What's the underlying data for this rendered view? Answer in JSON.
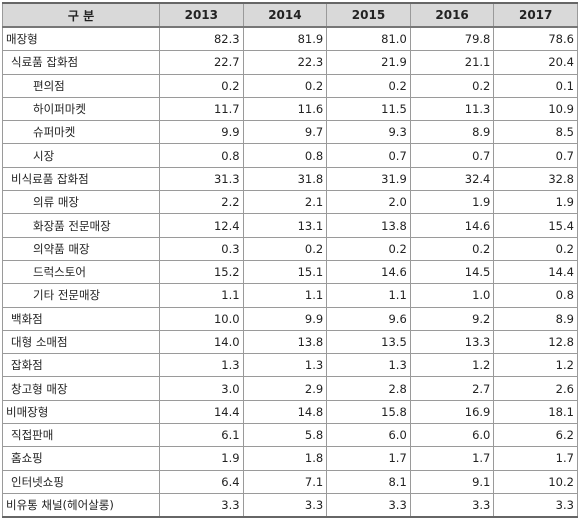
{
  "header": {
    "category": "구 분",
    "years": [
      "2013",
      "2014",
      "2015",
      "2016",
      "2017"
    ]
  },
  "rows": [
    {
      "label": "매장형",
      "level": 0,
      "values": [
        "82.3",
        "81.9",
        "81.0",
        "79.8",
        "78.6"
      ]
    },
    {
      "label": "식료품 잡화점",
      "level": 1,
      "values": [
        "22.7",
        "22.3",
        "21.9",
        "21.1",
        "20.4"
      ]
    },
    {
      "label": "편의점",
      "level": 2,
      "values": [
        "0.2",
        "0.2",
        "0.2",
        "0.2",
        "0.1"
      ]
    },
    {
      "label": "하이퍼마켓",
      "level": 2,
      "values": [
        "11.7",
        "11.6",
        "11.5",
        "11.3",
        "10.9"
      ]
    },
    {
      "label": "슈퍼마켓",
      "level": 2,
      "values": [
        "9.9",
        "9.7",
        "9.3",
        "8.9",
        "8.5"
      ]
    },
    {
      "label": "시장",
      "level": 2,
      "values": [
        "0.8",
        "0.8",
        "0.7",
        "0.7",
        "0.7"
      ]
    },
    {
      "label": "비식료품 잡화점",
      "level": 1,
      "values": [
        "31.3",
        "31.8",
        "31.9",
        "32.4",
        "32.8"
      ]
    },
    {
      "label": "의류 매장",
      "level": 2,
      "values": [
        "2.2",
        "2.1",
        "2.0",
        "1.9",
        "1.9"
      ]
    },
    {
      "label": "화장품 전문매장",
      "level": 2,
      "values": [
        "12.4",
        "13.1",
        "13.8",
        "14.6",
        "15.4"
      ]
    },
    {
      "label": "의약품 매장",
      "level": 2,
      "values": [
        "0.3",
        "0.2",
        "0.2",
        "0.2",
        "0.2"
      ]
    },
    {
      "label": "드럭스토어",
      "level": 2,
      "values": [
        "15.2",
        "15.1",
        "14.6",
        "14.5",
        "14.4"
      ]
    },
    {
      "label": "기타 전문매장",
      "level": 2,
      "values": [
        "1.1",
        "1.1",
        "1.1",
        "1.0",
        "0.8"
      ]
    },
    {
      "label": "백화점",
      "level": 1,
      "values": [
        "10.0",
        "9.9",
        "9.6",
        "9.2",
        "8.9"
      ]
    },
    {
      "label": "대형 소매점",
      "level": 1,
      "values": [
        "14.0",
        "13.8",
        "13.5",
        "13.3",
        "12.8"
      ]
    },
    {
      "label": "잡화점",
      "level": 1,
      "values": [
        "1.3",
        "1.3",
        "1.3",
        "1.2",
        "1.2"
      ]
    },
    {
      "label": "창고형 매장",
      "level": 1,
      "values": [
        "3.0",
        "2.9",
        "2.8",
        "2.7",
        "2.6"
      ]
    },
    {
      "label": "비매장형",
      "level": 0,
      "values": [
        "14.4",
        "14.8",
        "15.8",
        "16.9",
        "18.1"
      ]
    },
    {
      "label": "직접판매",
      "level": 1,
      "values": [
        "6.1",
        "5.8",
        "6.0",
        "6.0",
        "6.2"
      ]
    },
    {
      "label": "홈쇼핑",
      "level": 1,
      "values": [
        "1.9",
        "1.8",
        "1.7",
        "1.7",
        "1.7"
      ]
    },
    {
      "label": "인터넷쇼핑",
      "level": 1,
      "values": [
        "6.4",
        "7.1",
        "8.1",
        "9.1",
        "10.2"
      ]
    },
    {
      "label": "비유통 채널(헤어살롱)",
      "level": 0,
      "values": [
        "3.3",
        "3.3",
        "3.3",
        "3.3",
        "3.3"
      ]
    }
  ]
}
